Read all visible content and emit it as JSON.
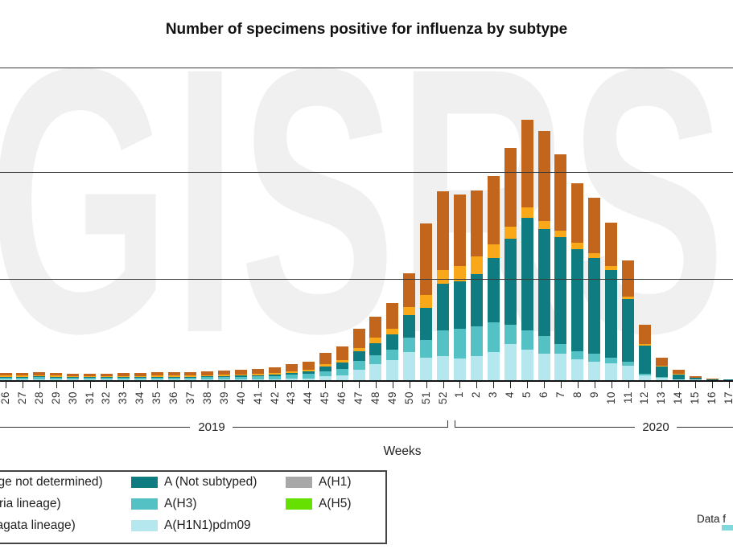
{
  "title": "Number of specimens positive for influenza by subtype",
  "watermark": "GISRS",
  "footer_note": "Data f",
  "x_axis_title": "Weeks",
  "year_groups": [
    {
      "label": "2019",
      "first_week": "26",
      "last_week": "52"
    },
    {
      "label": "2020",
      "first_week": "1",
      "last_week": "17"
    }
  ],
  "chart_data": {
    "type": "bar",
    "stacked": true,
    "title": "Number of specimens positive for influenza by subtype",
    "xlabel": "Weeks",
    "ylabel": "",
    "categories": [
      "26",
      "27",
      "28",
      "29",
      "30",
      "31",
      "32",
      "33",
      "34",
      "35",
      "36",
      "37",
      "38",
      "39",
      "40",
      "41",
      "42",
      "43",
      "44",
      "45",
      "46",
      "47",
      "48",
      "49",
      "50",
      "51",
      "52",
      "1",
      "2",
      "3",
      "4",
      "5",
      "6",
      "7",
      "8",
      "9",
      "10",
      "11",
      "12",
      "13",
      "14",
      "15",
      "16",
      "17"
    ],
    "ylim": [
      0,
      30000
    ],
    "gridline_interval_estimate": 10000,
    "grid": true,
    "y_axis_labels_visible": false,
    "legend_position": "bottom-left",
    "series": [
      {
        "name": "A(H1N1)pdm09",
        "color": "#b5e7ee",
        "values": [
          40,
          40,
          40,
          40,
          40,
          40,
          40,
          40,
          40,
          40,
          40,
          40,
          75,
          75,
          75,
          75,
          115,
          155,
          190,
          385,
          465,
          1005,
          1545,
          1930,
          2700,
          2160,
          2315,
          2085,
          2315,
          2700,
          3475,
          2935,
          2550,
          2550,
          2005,
          1775,
          1620,
          1390,
          465,
          230,
          75,
          40,
          0,
          0
        ]
      },
      {
        "name": "A(H3)",
        "color": "#54c2c4",
        "values": [
          230,
          230,
          270,
          230,
          190,
          190,
          190,
          230,
          230,
          230,
          230,
          230,
          230,
          270,
          270,
          310,
          310,
          385,
          425,
          465,
          620,
          850,
          850,
          1005,
          1390,
          1700,
          2470,
          2855,
          2855,
          2855,
          1855,
          1855,
          1700,
          925,
          770,
          770,
          540,
          385,
          155,
          75,
          40,
          0,
          0,
          0
        ]
      },
      {
        "name": "A (Not subtyped)",
        "color": "#0e7c80",
        "values": [
          75,
          75,
          75,
          75,
          75,
          75,
          75,
          75,
          75,
          75,
          75,
          75,
          75,
          75,
          115,
          115,
          155,
          190,
          230,
          465,
          620,
          925,
          1160,
          1465,
          2160,
          3090,
          4475,
          4555,
          5020,
          6175,
          8260,
          10810,
          10265,
          10265,
          9805,
          9185,
          8415,
          6020,
          2700,
          1005,
          465,
          155,
          75,
          75
        ]
      },
      {
        "name": "A(H1)",
        "color": "#a8a8a8",
        "values": [
          0,
          0,
          0,
          0,
          0,
          0,
          0,
          0,
          0,
          0,
          0,
          0,
          0,
          0,
          0,
          0,
          0,
          0,
          0,
          0,
          0,
          0,
          0,
          0,
          0,
          0,
          0,
          0,
          0,
          0,
          0,
          0,
          0,
          0,
          0,
          0,
          0,
          0,
          0,
          0,
          0,
          0,
          0,
          0
        ]
      },
      {
        "name": "A(H5)",
        "color": "#66e000",
        "values": [
          0,
          0,
          0,
          0,
          0,
          0,
          0,
          0,
          0,
          0,
          0,
          0,
          0,
          0,
          0,
          0,
          0,
          0,
          0,
          0,
          0,
          0,
          0,
          0,
          0,
          0,
          0,
          0,
          0,
          0,
          0,
          0,
          0,
          0,
          0,
          0,
          0,
          0,
          0,
          0,
          0,
          0,
          0,
          0
        ]
      },
      {
        "name": "B (Victoria lineage)",
        "color": "#f9a81a",
        "values": [
          115,
          115,
          115,
          115,
          80,
          80,
          80,
          80,
          80,
          115,
          115,
          115,
          115,
          115,
          115,
          115,
          155,
          155,
          190,
          230,
          230,
          310,
          540,
          540,
          770,
          1235,
          1310,
          1465,
          1700,
          1310,
          1160,
          1005,
          770,
          620,
          620,
          465,
          385,
          230,
          155,
          75,
          40,
          40,
          0,
          0
        ]
      },
      {
        "name": "B (lineage not determined)",
        "color": "#c2661d",
        "values": [
          240,
          240,
          270,
          240,
          235,
          235,
          235,
          275,
          275,
          310,
          310,
          310,
          355,
          390,
          425,
          465,
          500,
          660,
          740,
          1080,
          1305,
          1850,
          2005,
          2470,
          3250,
          6870,
          7565,
          6870,
          6330,
          6560,
          7565,
          8415,
          8645,
          7335,
          5715,
          5330,
          4170,
          3475,
          1855,
          770,
          385,
          155,
          75,
          40
        ]
      }
    ]
  },
  "legend": {
    "columns": [
      {
        "cut_off_at_left_edge": true,
        "items": [
          {
            "label": "B (lineage not determined)",
            "color": "#c2661d"
          },
          {
            "label": "B (Victoria lineage)",
            "color": "#f9a81a"
          },
          {
            "label": "B (Yamagata lineage)",
            "color": "#8f7700"
          }
        ]
      },
      {
        "items": [
          {
            "label": "A (Not subtyped)",
            "color": "#0e7c80"
          },
          {
            "label": "A(H3)",
            "color": "#54c2c4"
          },
          {
            "label": "A(H1N1)pdm09",
            "color": "#b5e7ee"
          }
        ]
      },
      {
        "items": [
          {
            "label": "A(H1)",
            "color": "#a8a8a8"
          },
          {
            "label": "A(H5)",
            "color": "#66e000"
          }
        ]
      }
    ]
  }
}
